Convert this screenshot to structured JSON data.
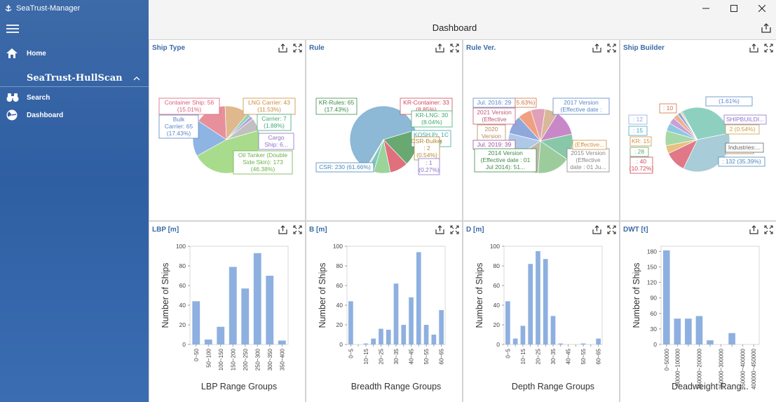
{
  "app": {
    "title": "SeaTrust-Manager"
  },
  "window": {
    "minimize": "—",
    "maximize": "☐",
    "close": "✕"
  },
  "sidebar": {
    "home_label": "Home",
    "section_label": "SeaTrust-HullScan",
    "items": [
      {
        "label": "Search"
      },
      {
        "label": "Dashboard"
      }
    ]
  },
  "dashboard": {
    "title": "Dashboard"
  },
  "colors": {
    "sidebar": "#2f5fa3",
    "bar": "#8eb0e0",
    "panel_title": "#3a6aa8"
  },
  "panels": [
    {
      "title": "Ship Type"
    },
    {
      "title": "Rule"
    },
    {
      "title": "Rule Ver."
    },
    {
      "title": "Ship Builder"
    },
    {
      "title": "LBP [m]"
    },
    {
      "title": "B [m]"
    },
    {
      "title": "D [m]"
    },
    {
      "title": "DWT [t]"
    }
  ],
  "chart_data": [
    {
      "type": "pie",
      "panel": "Ship Type",
      "slices": [
        {
          "label": "Oil Tanker (Double Side Skin)",
          "value": 173,
          "percent": "46.38%",
          "color": "#a8dc8c"
        },
        {
          "label": "Bulk Carrier",
          "value": 65,
          "percent": "17.43%",
          "color": "#8eb4e4"
        },
        {
          "label": "Container Ship",
          "value": 56,
          "percent": "15.01%",
          "color": "#e88f9c"
        },
        {
          "label": "LNG Carrier",
          "value": 43,
          "percent": "11.53%",
          "color": "#e0b88e"
        },
        {
          "label": "Carrier",
          "value": 7,
          "percent": "1.88%",
          "color": "#8ed4b4"
        },
        {
          "label": "Cargo Ship",
          "value": 6,
          "percent": "",
          "color": "#b4a0dc"
        },
        {
          "label": "",
          "value": 23,
          "percent": "",
          "color": "#c0c0c0"
        }
      ],
      "labels": [
        {
          "text": "Container Ship: 56",
          "sub": "(15.01%)",
          "color": "#d95f74"
        },
        {
          "text": "LNG Carrier: 43",
          "sub": "(11.53%)",
          "color": "#d08a3c"
        },
        {
          "text": "Bulk",
          "sub": "Carrier: 65",
          "sub2": "(17.43%)",
          "color": "#5b85c7"
        },
        {
          "text": "Carrier: 7",
          "sub": "(1.88%)",
          "color": "#40a878"
        },
        {
          "text": "Cargo",
          "sub": "Ship: 6...",
          "color": "#8e70c8"
        },
        {
          "text": "Oil Tanker (Double",
          "sub": "Side Skin): 173",
          "sub2": "(46.38%)",
          "color": "#6cb24a"
        }
      ]
    },
    {
      "type": "pie",
      "panel": "Rule",
      "slices": [
        {
          "label": "CSR",
          "value": 230,
          "percent": "61.66%",
          "color": "#8db8d6"
        },
        {
          "label": "KR-Rules",
          "value": 65,
          "percent": "17.43%",
          "color": "#6aa872"
        },
        {
          "label": "KR-Container",
          "value": 33,
          "percent": "8.85%",
          "color": "#e0707c"
        },
        {
          "label": "KR-LNG",
          "value": 30,
          "percent": "8.04%",
          "color": "#9ad49a"
        },
        {
          "label": "KOSH Pr. 1C",
          "value": 12,
          "percent": "3.22%",
          "color": "#7cc8c0"
        },
        {
          "label": "CSR-Bulker",
          "value": 2,
          "percent": "0.54%",
          "color": "#d4a45c"
        },
        {
          "label": "",
          "value": 1,
          "percent": "0.27%",
          "color": "#a07cc8"
        }
      ],
      "labels": [
        {
          "text": "KR-Rules: 65",
          "sub": "(17.43%)",
          "color": "#3f8a4a"
        },
        {
          "text": "KR-Container: 33",
          "sub": "(8.85%)",
          "color": "#d04a5c"
        },
        {
          "text": "KR-LNG: 30",
          "sub": "(8.04%)",
          "color": "#3faa6a"
        },
        {
          "text": "KOSH Pr. 1C",
          "sub": "(3.22%)",
          "color": "#3aa8a0"
        },
        {
          "text": "CSR-Bulker",
          "sub": ": 2",
          "sub2": "(0.54%)",
          "color": "#b88a38"
        },
        {
          "text": ": 1",
          "sub": "(0.27%)",
          "color": "#8e70c8"
        },
        {
          "text": "CSR: 230 (61.66%)",
          "color": "#4a88b8"
        }
      ]
    },
    {
      "type": "pie",
      "panel": "Rule Ver.",
      "slices": [
        {
          "label": "2014 Version (Effective date : 01 Jul 2014)",
          "value": 51,
          "color": "#9ccc9c"
        },
        {
          "label": "2015 Version (Effective date : 01 Ju...",
          "value": 45,
          "color": "#c0b8a8"
        },
        {
          "label": "2017 Version (Effective date...",
          "value": 40,
          "color": "#b0c8e8"
        },
        {
          "label": "Jul. 2016",
          "value": 29,
          "color": "#8ea8dc"
        },
        {
          "label": "",
          "value": 21,
          "percent": "5.63%",
          "color": "#f0a080"
        },
        {
          "label": "2021 Version (Effective",
          "value": 22,
          "color": "#e0a0b8"
        },
        {
          "label": "2020 Version",
          "value": 20,
          "color": "#d8b898"
        },
        {
          "label": "Jul. 2019",
          "value": 39,
          "color": "#c888c8"
        },
        {
          "label": "",
          "value": 40,
          "color": "#88c8a8"
        }
      ],
      "labels": [
        {
          "text": "Jul. 2016: 29",
          "color": "#5b85c7"
        },
        {
          "text": "5.63%)",
          "color": "#d07040"
        },
        {
          "text": "2017 Version",
          "sub": "(Effective date :",
          "color": "#5b85c7"
        },
        {
          "text": "2021 Version",
          "sub": "(Effective",
          "color": "#c05878"
        },
        {
          "text": "2020",
          "sub": "Version",
          "color": "#b88a58"
        },
        {
          "text": "Jul. 2019: 39",
          "color": "#a050a0"
        },
        {
          "text": "2014 Version",
          "sub": "(Effective date : 01",
          "sub2": "Jul 2014): 51...",
          "color": "#3f8a4a"
        },
        {
          "text": "2015 Version",
          "sub": "(Effective",
          "sub2": "date : 01 Ju...",
          "color": "#888"
        },
        {
          "text": "(Effective...",
          "color": "#d09040"
        }
      ]
    },
    {
      "type": "pie",
      "panel": "Ship Builder",
      "slices": [
        {
          "label": "",
          "value": 132,
          "percent": "35.39%",
          "color": "#a8ccd8"
        },
        {
          "label": "",
          "value": 40,
          "percent": "10.72%",
          "color": "#e07888"
        },
        {
          "label": "KR",
          "value": 15,
          "color": "#e8c080"
        },
        {
          "label": "",
          "value": 28,
          "color": "#a8d8a8"
        },
        {
          "label": "",
          "value": 15,
          "color": "#8ec8e0"
        },
        {
          "label": "",
          "value": 12,
          "color": "#c8a0d8"
        },
        {
          "label": "",
          "value": 10,
          "color": "#f0b090"
        },
        {
          "label": "SHIPBUILDI...",
          "value": 6,
          "percent": "1.61%",
          "color": "#8ea8dc"
        },
        {
          "label": "",
          "value": 2,
          "percent": "0.54%",
          "color": "#e8d080"
        },
        {
          "label": "Industries:...",
          "value": 2,
          "percent": "0.54%",
          "color": "#a0a0a0"
        },
        {
          "label": "",
          "value": 111,
          "color": "#8ed0c0"
        }
      ],
      "labels": [
        {
          "text": ": 10",
          "color": "#d07040"
        },
        {
          "text": "(1.61%)",
          "color": "#5b85c7"
        },
        {
          "text": ": 12",
          "color": "#8ea8dc"
        },
        {
          "text": "SHIPBUILDI...",
          "color": "#8e70c8"
        },
        {
          "text": ": 15",
          "color": "#40a8c0"
        },
        {
          "text": "2 (0.54%)",
          "color": "#c8a040"
        },
        {
          "text": "KR: 15",
          "color": "#d09040"
        },
        {
          "text": "(0.54%)",
          "color": "#b88a38"
        },
        {
          "text": ": 28",
          "color": "#5aa86a"
        },
        {
          "text": "Industries:...",
          "color": "#666"
        },
        {
          "text": ": 40",
          "sub": "(10.72%)",
          "color": "#d04a5c"
        },
        {
          "text": ": 132 (35.39%)",
          "color": "#4a88b8"
        }
      ]
    },
    {
      "type": "bar",
      "panel": "LBP [m]",
      "categories": [
        "0~50",
        "50~100",
        "100~150",
        "150~200",
        "200~250",
        "250~300",
        "300~350",
        "350~400"
      ],
      "values": [
        44,
        5,
        18,
        79,
        57,
        93,
        70,
        4
      ],
      "xlabel": "LBP Range Groups",
      "ylabel": "Number of Ships",
      "ylim": [
        0,
        100
      ],
      "yticks": [
        0,
        20,
        40,
        60,
        80,
        100
      ]
    },
    {
      "type": "bar",
      "panel": "B [m]",
      "categories": [
        "0~5",
        "5~10",
        "10~15",
        "15~20",
        "20~25",
        "25~30",
        "30~35",
        "35~40",
        "40~45",
        "45~50",
        "50~55",
        "55~60",
        "60~65"
      ],
      "tick_labels": [
        "0~5",
        "",
        "10~15",
        "",
        "20~25",
        "",
        "30~35",
        "",
        "40~45",
        "",
        "50~55",
        "",
        "60~65"
      ],
      "values": [
        44,
        0,
        1,
        6,
        16,
        15,
        62,
        20,
        48,
        94,
        20,
        10,
        35
      ],
      "xlabel": "Breadth Range Groups",
      "ylabel": "Number of Ships",
      "ylim": [
        0,
        100
      ],
      "yticks": [
        0,
        20,
        40,
        60,
        80,
        100
      ]
    },
    {
      "type": "bar",
      "panel": "D [m]",
      "categories": [
        "0~5",
        "5~10",
        "10~15",
        "15~20",
        "20~25",
        "25~30",
        "30~35",
        "35~40",
        "40~45",
        "45~50",
        "50~55",
        "55~60",
        "60~65"
      ],
      "tick_labels": [
        "0~5",
        "",
        "10~15",
        "",
        "20~25",
        "",
        "30~35",
        "",
        "40~45",
        "",
        "50~55",
        "",
        "60~65"
      ],
      "values": [
        44,
        6,
        19,
        82,
        95,
        87,
        29,
        1,
        0,
        0,
        1,
        0,
        6
      ],
      "xlabel": "Depth Range Groups",
      "ylabel": "Number of Ships",
      "ylim": [
        0,
        100
      ],
      "yticks": [
        0,
        20,
        40,
        60,
        80,
        100
      ]
    },
    {
      "type": "bar",
      "panel": "DWT [t]",
      "categories": [
        "0~50000",
        "50000~100000",
        "100000~150000",
        "150000~200000",
        "200000~250000",
        "250000~300000",
        "300000~350000",
        "350000~400000",
        "400000~450000"
      ],
      "tick_labels": [
        "0~50000",
        "50000~100000",
        "",
        "150000~200000",
        "",
        "250000~300000",
        "",
        "350000~400000",
        "400000~450000"
      ],
      "values": [
        182,
        50,
        50,
        55,
        8,
        0,
        22,
        0,
        0
      ],
      "xlabel": "Deadweight Rang...",
      "ylabel": "Number of Ships",
      "ylim": [
        0,
        190
      ],
      "yticks": [
        0,
        30,
        60,
        90,
        120,
        150,
        180
      ]
    }
  ]
}
